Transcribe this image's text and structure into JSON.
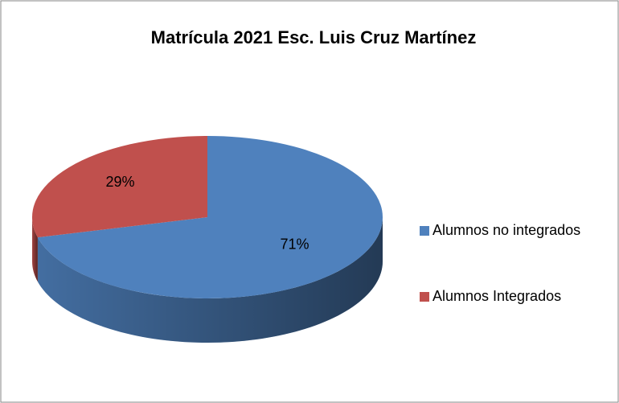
{
  "chart_data": {
    "type": "pie3d",
    "title": "Matrícula 2021 Esc. Luis Cruz Martínez",
    "categories": [
      "Alumnos no integrados",
      "Alumnos Integrados"
    ],
    "values": [
      71,
      29
    ],
    "value_labels": [
      "71%",
      "29%"
    ],
    "colors": [
      "#4f81bd",
      "#c0504d"
    ],
    "legend": "right"
  }
}
